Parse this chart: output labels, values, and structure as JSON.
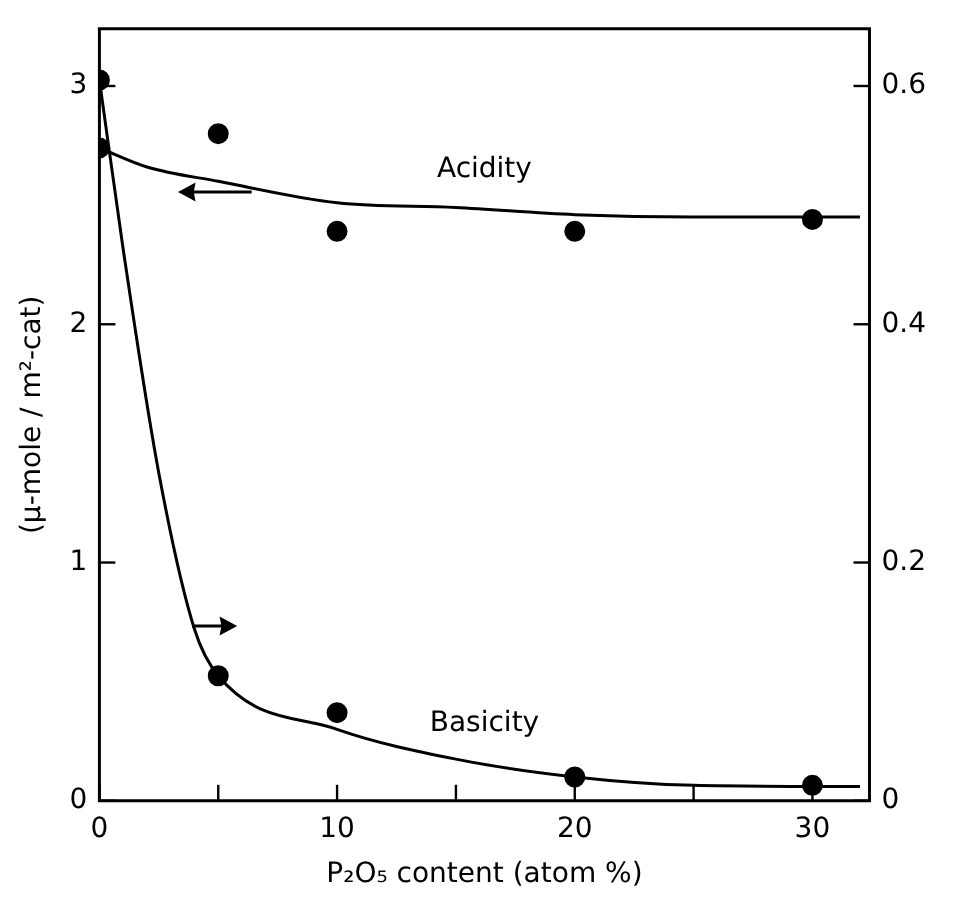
{
  "chart_data": {
    "type": "scatter",
    "xlabel": "P₂O₅ content (atom %)",
    "ylabel": "(μ-mole / m²-cat)",
    "xlim": [
      0,
      32.4
    ],
    "xticks": [
      0,
      {
        "value": 5,
        "label": null
      },
      10,
      {
        "value": 15,
        "label": null
      },
      20,
      {
        "value": 25,
        "label": null
      },
      30
    ],
    "ylim": [
      0,
      3.24
    ],
    "yticks": [
      0,
      1,
      2,
      3
    ],
    "y2lim": [
      0,
      0.648
    ],
    "y2ticks": [
      0,
      0.2,
      0.4,
      0.6
    ],
    "grid": false,
    "legend": false,
    "marker": "circle",
    "series": [
      {
        "color": "#000000",
        "x": [
          0,
          5,
          10,
          20,
          30
        ],
        "values": [
          2.74,
          2.8,
          2.39,
          2.39,
          2.44
        ]
      },
      {
        "type": "line",
        "name": "Acidity",
        "color": "#000000",
        "marker": "none",
        "x": [
          0,
          2,
          5,
          10,
          15,
          20,
          25,
          32
        ],
        "values": [
          2.74,
          2.66,
          2.6,
          2.51,
          2.49,
          2.46,
          2.45,
          2.45
        ]
      },
      {
        "color": "#000000",
        "axis": "y2",
        "x": [
          0,
          5,
          10,
          20,
          30
        ],
        "values": [
          0.605,
          0.105,
          0.074,
          0.02,
          0.013
        ]
      },
      {
        "type": "line",
        "name": "Basicity",
        "color": "#000000",
        "marker": "none",
        "axis": "y2",
        "x": [
          0,
          1,
          2.5,
          4,
          5,
          10,
          15,
          20,
          25,
          32
        ],
        "values": [
          0.605,
          0.463,
          0.275,
          0.144,
          0.105,
          0.06,
          0.035,
          0.02,
          0.013,
          0.012
        ]
      }
    ]
  }
}
